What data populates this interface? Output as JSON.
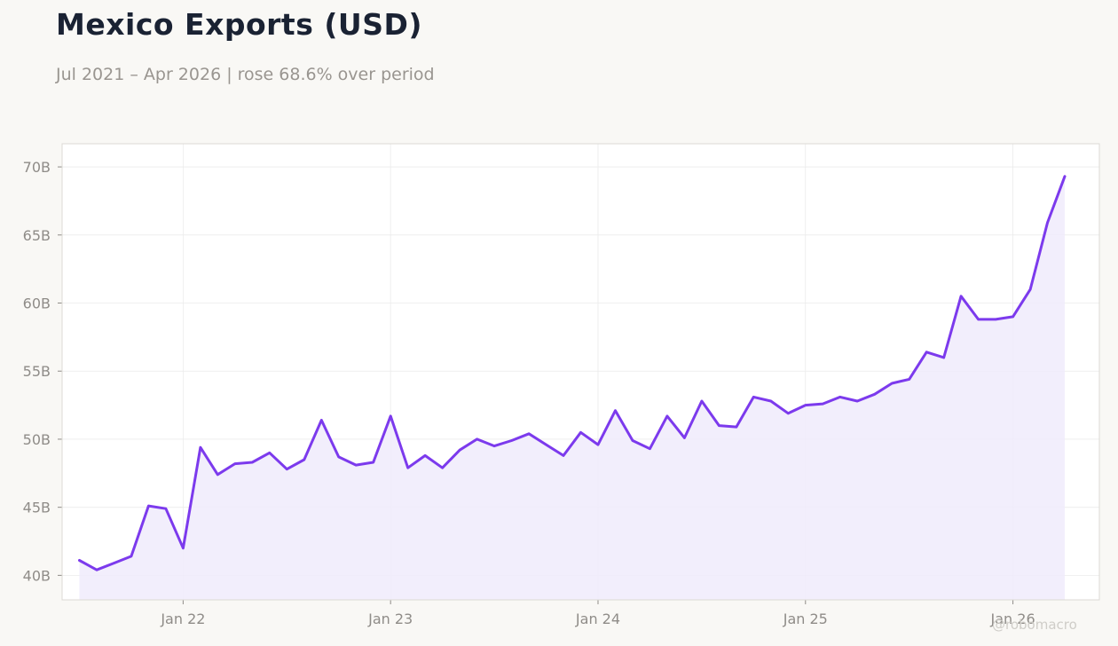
{
  "title": "Mexico Exports (USD)",
  "subtitle": "Jul 2021 – Apr 2026 | rose 68.6% over period",
  "watermark": "@robomacro",
  "colors": {
    "line": "#7c3aed",
    "fill": "#f0ebfb",
    "grid": "#ebebeb",
    "axis_text": "#8f8c88",
    "frame": "#dcdad5",
    "plot_bg": "#ffffff"
  },
  "chart_data": {
    "type": "area",
    "title": "Mexico Exports (USD)",
    "xlabel": "",
    "ylabel": "",
    "ylim": [
      38.2,
      71.7
    ],
    "grid": true,
    "x_ticks": [
      {
        "date": "2022-01",
        "label": "Jan 22"
      },
      {
        "date": "2023-01",
        "label": "Jan 23"
      },
      {
        "date": "2024-01",
        "label": "Jan 24"
      },
      {
        "date": "2025-01",
        "label": "Jan 25"
      },
      {
        "date": "2026-01",
        "label": "Jan 26"
      }
    ],
    "y_ticks": [
      {
        "value": 40,
        "label": "40B"
      },
      {
        "value": 45,
        "label": "45B"
      },
      {
        "value": 50,
        "label": "50B"
      },
      {
        "value": 55,
        "label": "55B"
      },
      {
        "value": 60,
        "label": "60B"
      },
      {
        "value": 65,
        "label": "65B"
      },
      {
        "value": 70,
        "label": "70B"
      }
    ],
    "x_range": [
      "2021-06",
      "2026-06"
    ],
    "unit": "USD billions",
    "series": [
      {
        "x": [
          "2021-07",
          "2021-08",
          "2021-09",
          "2021-10",
          "2021-11",
          "2021-12",
          "2022-01",
          "2022-02",
          "2022-03",
          "2022-04",
          "2022-05",
          "2022-06",
          "2022-07",
          "2022-08",
          "2022-09",
          "2022-10",
          "2022-11",
          "2022-12",
          "2023-01",
          "2023-02",
          "2023-03",
          "2023-04",
          "2023-05",
          "2023-06",
          "2023-07",
          "2023-08",
          "2023-09",
          "2023-10",
          "2023-11",
          "2023-12",
          "2024-01",
          "2024-02",
          "2024-03",
          "2024-04",
          "2024-05",
          "2024-06",
          "2024-07",
          "2024-08",
          "2024-09",
          "2024-10",
          "2024-11",
          "2024-12",
          "2025-01",
          "2025-02",
          "2025-03",
          "2025-04",
          "2025-05",
          "2025-06",
          "2025-07",
          "2025-08",
          "2025-09",
          "2025-10",
          "2025-11",
          "2025-12",
          "2026-01",
          "2026-02",
          "2026-03",
          "2026-04"
        ],
        "values": [
          41.1,
          40.4,
          40.9,
          41.4,
          45.1,
          44.9,
          42.0,
          49.4,
          47.4,
          48.2,
          48.3,
          49.0,
          47.8,
          48.5,
          51.4,
          48.7,
          48.1,
          48.3,
          51.7,
          47.9,
          48.8,
          47.9,
          49.2,
          50.0,
          49.5,
          49.9,
          50.4,
          49.6,
          48.8,
          50.5,
          49.6,
          52.1,
          49.9,
          49.3,
          51.7,
          50.1,
          52.8,
          51.0,
          50.9,
          53.1,
          52.8,
          51.9,
          52.5,
          52.6,
          53.1,
          52.8,
          53.3,
          54.1,
          54.4,
          56.4,
          56.0,
          60.5,
          58.8,
          58.8,
          59.0,
          61.0,
          65.9,
          69.3
        ]
      }
    ]
  }
}
